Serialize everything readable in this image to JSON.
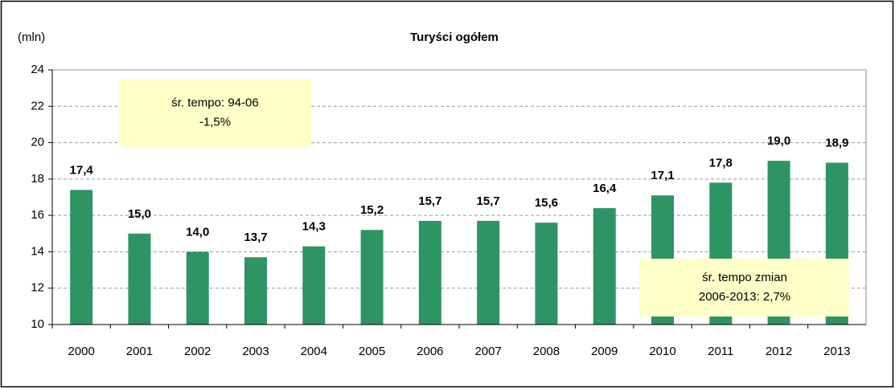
{
  "chart_data": {
    "type": "bar",
    "title": "Turyści ogółem",
    "y_axis_label": "(mln)",
    "categories": [
      "2000",
      "2001",
      "2002",
      "2003",
      "2004",
      "2005",
      "2006",
      "2007",
      "2008",
      "2009",
      "2010",
      "2011",
      "2012",
      "2013"
    ],
    "values": [
      17.4,
      15.0,
      14.0,
      13.7,
      14.3,
      15.2,
      15.7,
      15.7,
      15.6,
      16.4,
      17.1,
      17.8,
      19.0,
      18.9
    ],
    "value_labels": [
      "17,4",
      "15,0",
      "14,0",
      "13,7",
      "14,3",
      "15,2",
      "15,7",
      "15,7",
      "15,6",
      "16,4",
      "17,1",
      "17,8",
      "19,0",
      "18,9"
    ],
    "color": "#2e9464",
    "ylim": [
      10,
      24
    ],
    "yticks": [
      10,
      12,
      14,
      16,
      18,
      20,
      22,
      24
    ],
    "grid": true,
    "annotations": [
      {
        "lines": [
          "śr. tempo: 94-06",
          "-1,5%"
        ]
      },
      {
        "lines": [
          "śr. tempo zmian",
          "2006-2013: 2,7%"
        ]
      }
    ]
  }
}
